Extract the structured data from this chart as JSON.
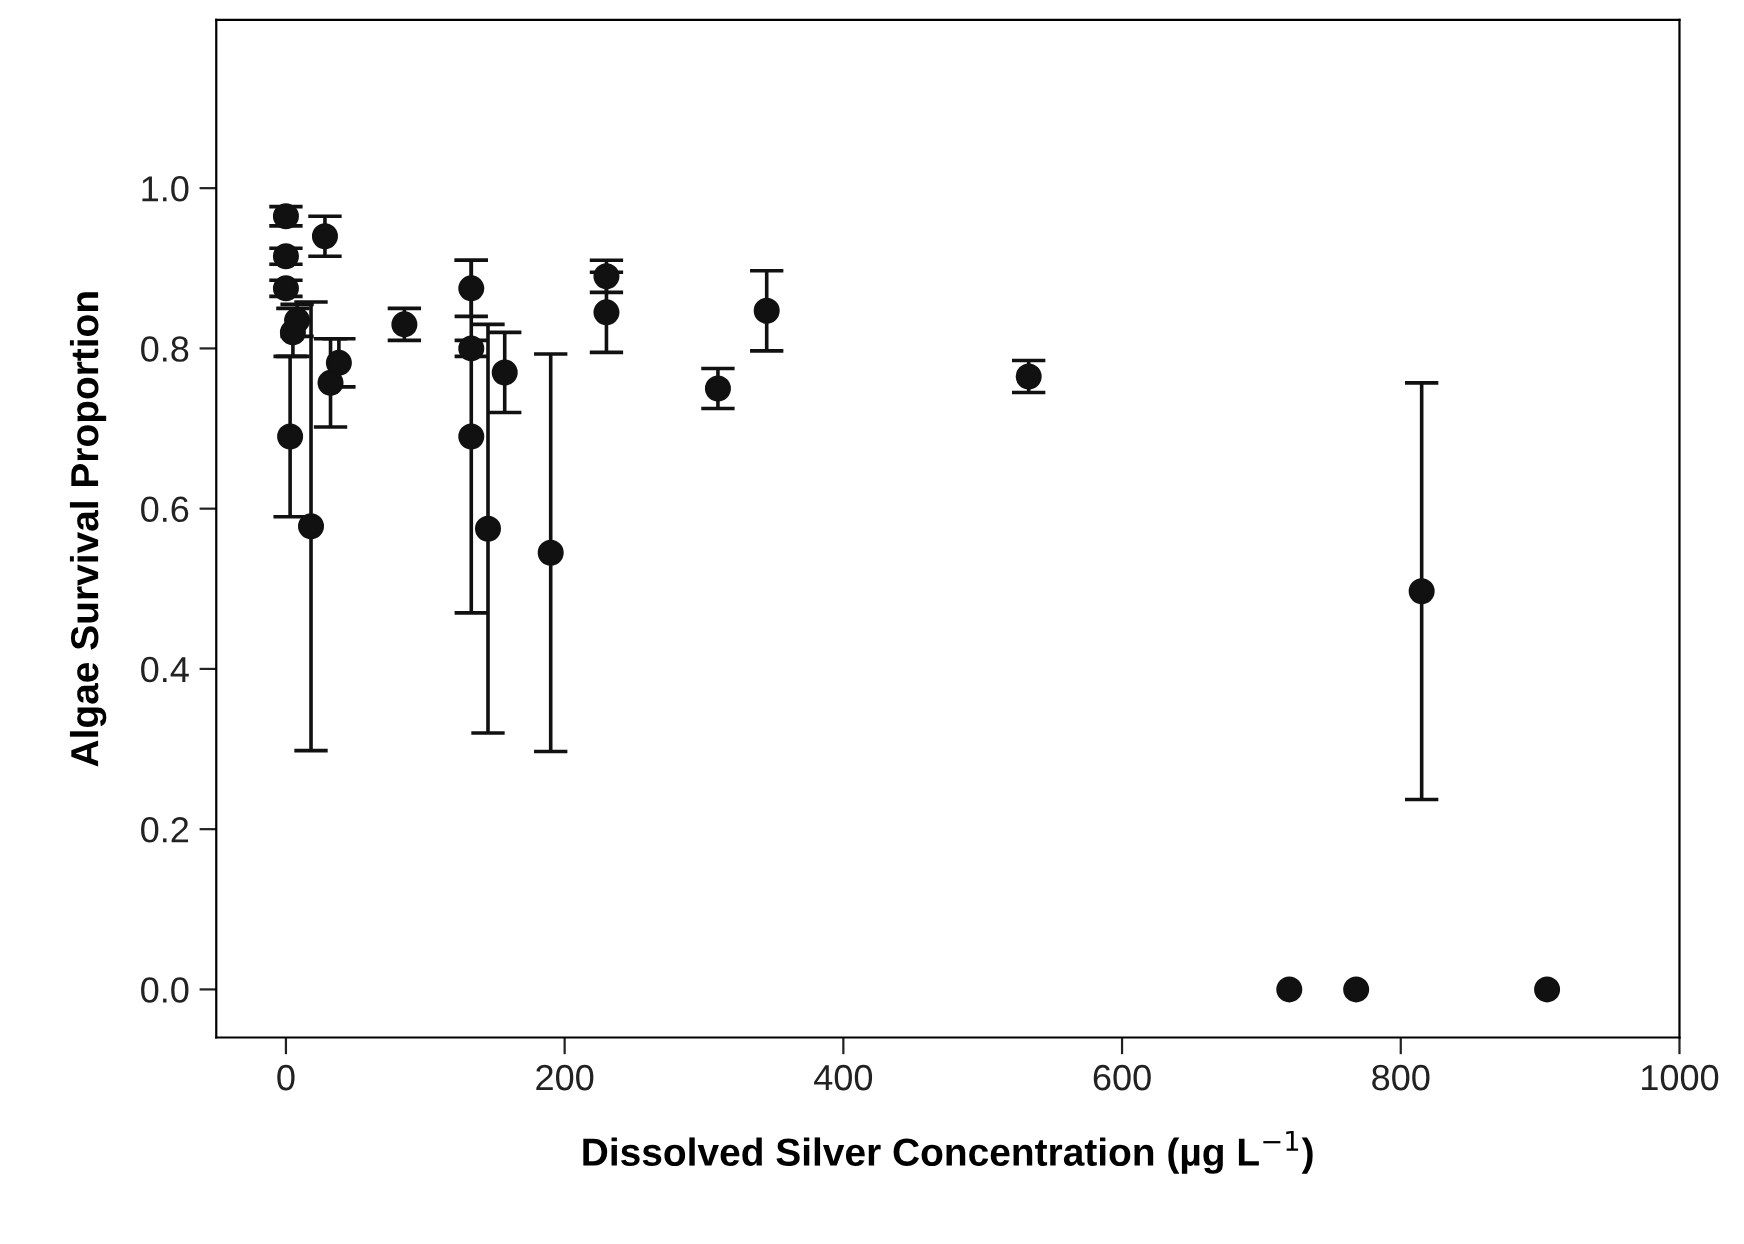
{
  "chart_data": {
    "type": "scatter",
    "xlabel": "Dissolved Silver Concentration (µg L$^{−1}$)",
    "ylabel": "Algae Survival Proportion",
    "x": [
      0,
      0,
      0,
      5,
      8,
      3,
      18,
      28,
      32,
      38,
      85,
      133,
      133,
      133,
      145,
      157,
      190,
      230,
      230,
      310,
      345,
      533,
      720,
      768,
      815,
      905
    ],
    "series": [
      {
        "color": "#111111",
        "values": [
          0.965,
          0.915,
          0.875,
          0.82,
          0.835,
          0.69,
          0.578,
          0.94,
          0.757,
          0.782,
          0.83,
          0.875,
          0.8,
          0.69,
          0.575,
          0.77,
          0.545,
          0.89,
          0.845,
          0.75,
          0.847,
          0.765,
          0,
          0,
          0.497,
          0
        ],
        "errors": [
          0.012,
          0.01,
          0.01,
          0.03,
          0.02,
          0.1,
          0.28,
          0.025,
          0.055,
          0.03,
          0.02,
          0.035,
          0.01,
          0.22,
          0.255,
          0.05,
          0.248,
          0.02,
          0.05,
          0.025,
          0.05,
          0.02,
          null,
          null,
          0.26,
          null
        ]
      }
    ],
    "marker": "circle",
    "grid": false,
    "legend": false,
    "xlim": [
      -50,
      1000
    ],
    "xticks": [
      0,
      200,
      400,
      600,
      800,
      1000
    ],
    "ylim": [
      -0.06,
      1.21
    ],
    "yticks": [
      {
        "value": 0,
        "label": "0.0"
      },
      {
        "value": 0.2,
        "label": "0.2"
      },
      {
        "value": 0.4,
        "label": "0.4"
      },
      {
        "value": 0.6,
        "label": "0.6"
      },
      {
        "value": 0.8,
        "label": "0.8"
      },
      {
        "value": 1.0,
        "label": "1.0"
      }
    ]
  }
}
